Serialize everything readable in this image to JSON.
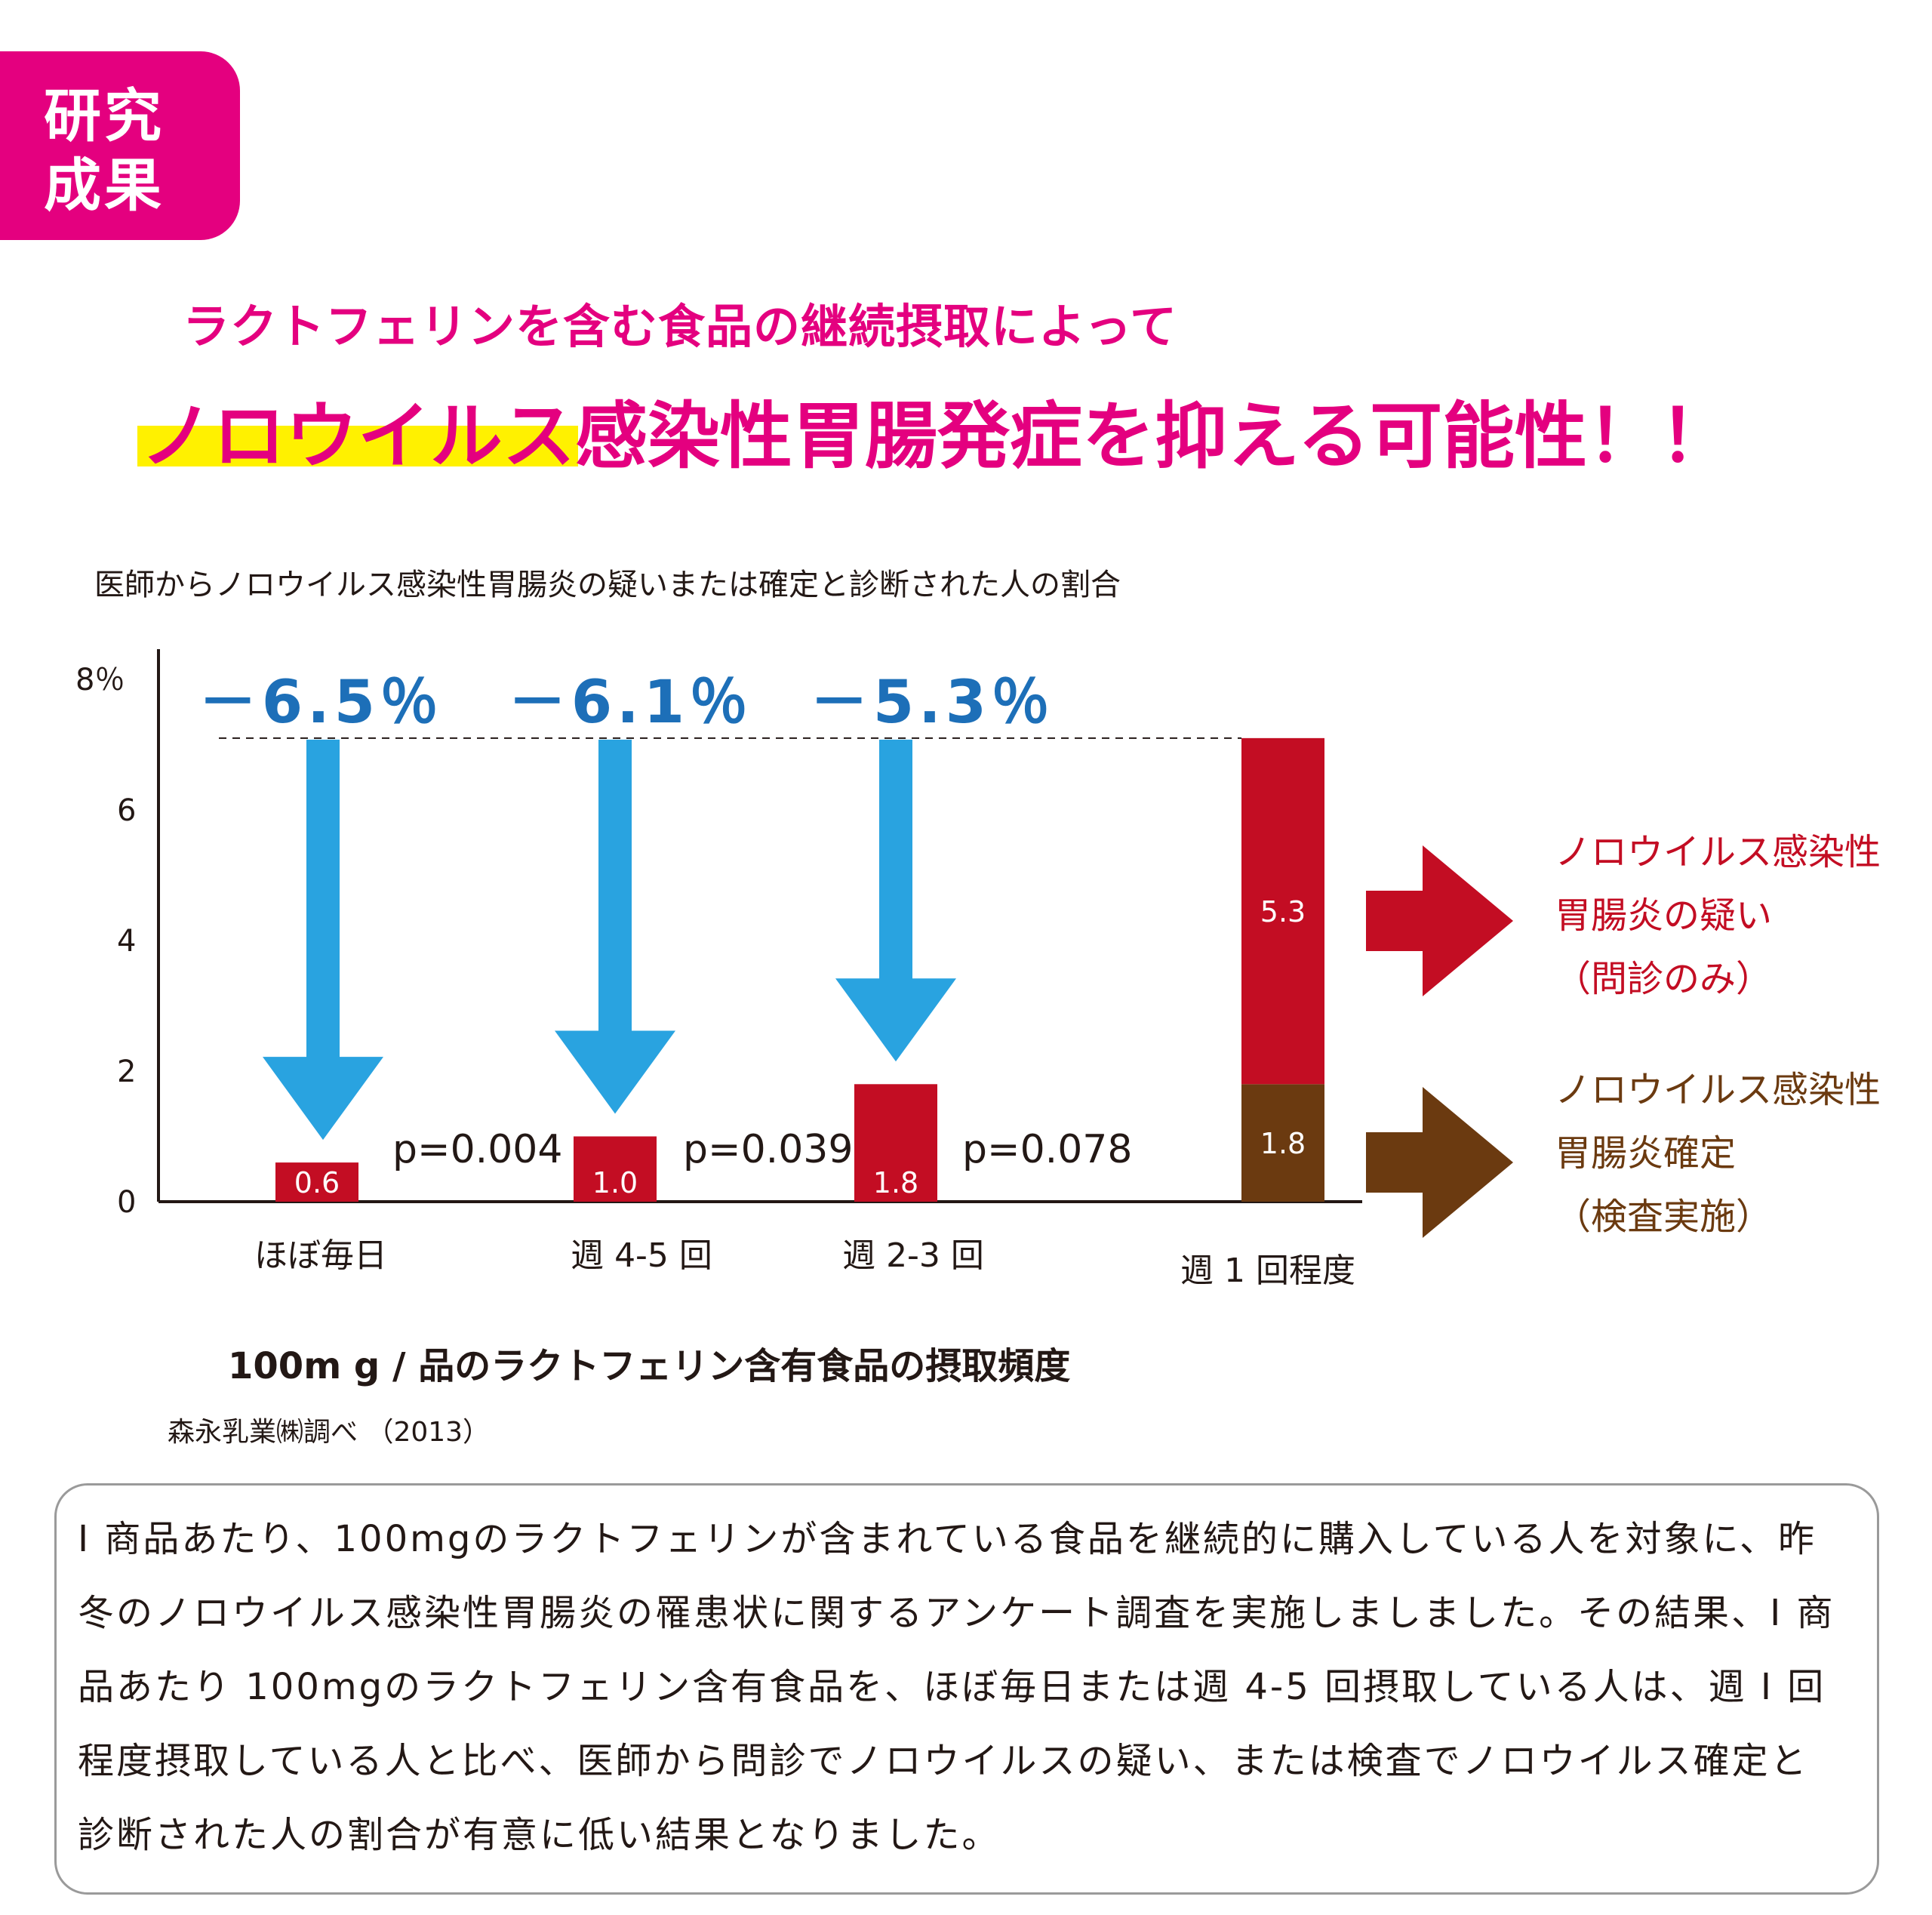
{
  "badge": {
    "line1": "研究",
    "line2": "成果"
  },
  "subhead": "ラクトフェリンを含む食品の継続摂取によって",
  "headline": {
    "highlighted": "ノロウイルス",
    "rest": "感染性胃腸発症を抑える可能性！！"
  },
  "chart_title": "医師からノロウイルス感染性胃腸炎の疑いまたは確定と診断された人の割合",
  "colors": {
    "suspected": "#c30d23",
    "confirmed": "#6b3a10",
    "arrow_down": "#29a3e0",
    "reduction_text": "#1d6fb8",
    "accent": "#e4007f",
    "highlight": "#fff100"
  },
  "chart_data": {
    "type": "bar",
    "stacked": true,
    "categories": [
      "ほぼ毎日",
      "週 4-5 回",
      "週 2-3 回",
      "週 1 回程度"
    ],
    "series": [
      {
        "name": "ノロウイルス感染性胃腸炎確定（検査実施）",
        "values": [
          0.6,
          1.0,
          1.8,
          1.8
        ]
      },
      {
        "name": "ノロウイルス感染性胃腸炎の疑い（問診のみ）",
        "values": [
          0,
          0,
          0,
          5.3
        ]
      }
    ],
    "bar_labels": [
      "0.6",
      "1.0",
      "1.8",
      "1.8",
      "5.3"
    ],
    "reductions": [
      "－6.5％",
      "－6.1％",
      "－5.3％"
    ],
    "p_values": [
      "p=0.004",
      "p=0.039",
      "p=0.078"
    ],
    "reference_total": 7.1,
    "y_ticks": [
      "0",
      "2",
      "4",
      "6",
      "8％"
    ],
    "ylim": [
      0,
      8
    ],
    "xlabel": "100m g / 品のラクトフェリン含有食品の摂取頻度",
    "legend": [
      {
        "lines": [
          "ノロウイルス感染性",
          "胃腸炎の疑い",
          "（問診のみ）"
        ],
        "color": "#c30d23"
      },
      {
        "lines": [
          "ノロウイルス感染性",
          "胃腸炎確定",
          "（検査実施）"
        ],
        "color": "#6b3a10"
      }
    ]
  },
  "source": "森永乳業㈱調べ （2013）",
  "description": "I 商品あたり、100mgのラクトフェリンが含まれている食品を継続的に購入している人を対象に、昨冬のノロウイルス感染性胃腸炎の罹患状に関するアンケート調査を実施しましました。その結果、I 商品あたり 100mgのラクトフェリン含有食品を、ほぼ毎日または週 4-5 回摂取している人は、週 I 回程度摂取している人と比べ、医師から問診でノロウイルスの疑い、または検査でノロウイルス確定と診断された人の割合が有意に低い結果となりました。"
}
